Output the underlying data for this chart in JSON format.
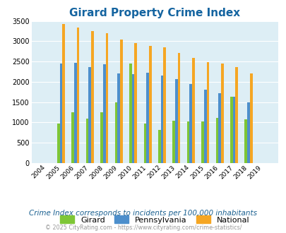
{
  "title": "Girard Property Crime Index",
  "years": [
    2004,
    2005,
    2006,
    2007,
    2008,
    2009,
    2010,
    2011,
    2012,
    2013,
    2014,
    2015,
    2016,
    2017,
    2018,
    2019
  ],
  "girard": [
    0,
    975,
    1260,
    1100,
    1260,
    1490,
    2460,
    975,
    820,
    1045,
    1030,
    1030,
    1110,
    1635,
    1080,
    0
  ],
  "pennsylvania": [
    0,
    2460,
    2470,
    2370,
    2440,
    2210,
    2190,
    2230,
    2160,
    2070,
    1940,
    1800,
    1720,
    1630,
    1490,
    0
  ],
  "national": [
    0,
    3420,
    3330,
    3260,
    3200,
    3040,
    2950,
    2890,
    2850,
    2720,
    2590,
    2490,
    2460,
    2370,
    2200,
    0
  ],
  "girard_color": "#7ec636",
  "pennsylvania_color": "#4d8fcc",
  "national_color": "#f5a623",
  "plot_bg_color": "#ddeef5",
  "ylim": [
    0,
    3500
  ],
  "yticks": [
    0,
    500,
    1000,
    1500,
    2000,
    2500,
    3000,
    3500
  ],
  "subtitle": "Crime Index corresponds to incidents per 100,000 inhabitants",
  "footer": "© 2025 CityRating.com - https://www.cityrating.com/crime-statistics/",
  "title_color": "#1464a0",
  "subtitle_color": "#1a6090",
  "footer_color": "#999999",
  "bar_width": 0.18
}
